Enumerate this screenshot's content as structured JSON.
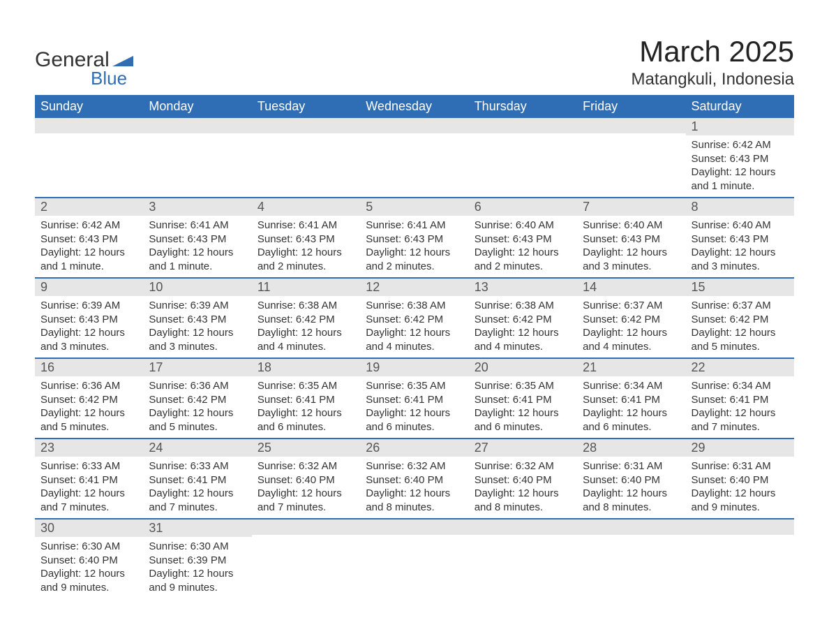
{
  "logo": {
    "line1": "General",
    "line2": "Blue"
  },
  "title": "March 2025",
  "location": "Matangkuli, Indonesia",
  "header_bg": "#2f6eb5",
  "header_fg": "#ffffff",
  "row_separator_color": "#2f6eb5",
  "daynum_bg": "#e6e6e6",
  "columns": [
    "Sunday",
    "Monday",
    "Tuesday",
    "Wednesday",
    "Thursday",
    "Friday",
    "Saturday"
  ],
  "weeks": [
    [
      null,
      null,
      null,
      null,
      null,
      null,
      {
        "n": "1",
        "sunrise": "Sunrise: 6:42 AM",
        "sunset": "Sunset: 6:43 PM",
        "daylight": "Daylight: 12 hours and 1 minute."
      }
    ],
    [
      {
        "n": "2",
        "sunrise": "Sunrise: 6:42 AM",
        "sunset": "Sunset: 6:43 PM",
        "daylight": "Daylight: 12 hours and 1 minute."
      },
      {
        "n": "3",
        "sunrise": "Sunrise: 6:41 AM",
        "sunset": "Sunset: 6:43 PM",
        "daylight": "Daylight: 12 hours and 1 minute."
      },
      {
        "n": "4",
        "sunrise": "Sunrise: 6:41 AM",
        "sunset": "Sunset: 6:43 PM",
        "daylight": "Daylight: 12 hours and 2 minutes."
      },
      {
        "n": "5",
        "sunrise": "Sunrise: 6:41 AM",
        "sunset": "Sunset: 6:43 PM",
        "daylight": "Daylight: 12 hours and 2 minutes."
      },
      {
        "n": "6",
        "sunrise": "Sunrise: 6:40 AM",
        "sunset": "Sunset: 6:43 PM",
        "daylight": "Daylight: 12 hours and 2 minutes."
      },
      {
        "n": "7",
        "sunrise": "Sunrise: 6:40 AM",
        "sunset": "Sunset: 6:43 PM",
        "daylight": "Daylight: 12 hours and 3 minutes."
      },
      {
        "n": "8",
        "sunrise": "Sunrise: 6:40 AM",
        "sunset": "Sunset: 6:43 PM",
        "daylight": "Daylight: 12 hours and 3 minutes."
      }
    ],
    [
      {
        "n": "9",
        "sunrise": "Sunrise: 6:39 AM",
        "sunset": "Sunset: 6:43 PM",
        "daylight": "Daylight: 12 hours and 3 minutes."
      },
      {
        "n": "10",
        "sunrise": "Sunrise: 6:39 AM",
        "sunset": "Sunset: 6:43 PM",
        "daylight": "Daylight: 12 hours and 3 minutes."
      },
      {
        "n": "11",
        "sunrise": "Sunrise: 6:38 AM",
        "sunset": "Sunset: 6:42 PM",
        "daylight": "Daylight: 12 hours and 4 minutes."
      },
      {
        "n": "12",
        "sunrise": "Sunrise: 6:38 AM",
        "sunset": "Sunset: 6:42 PM",
        "daylight": "Daylight: 12 hours and 4 minutes."
      },
      {
        "n": "13",
        "sunrise": "Sunrise: 6:38 AM",
        "sunset": "Sunset: 6:42 PM",
        "daylight": "Daylight: 12 hours and 4 minutes."
      },
      {
        "n": "14",
        "sunrise": "Sunrise: 6:37 AM",
        "sunset": "Sunset: 6:42 PM",
        "daylight": "Daylight: 12 hours and 4 minutes."
      },
      {
        "n": "15",
        "sunrise": "Sunrise: 6:37 AM",
        "sunset": "Sunset: 6:42 PM",
        "daylight": "Daylight: 12 hours and 5 minutes."
      }
    ],
    [
      {
        "n": "16",
        "sunrise": "Sunrise: 6:36 AM",
        "sunset": "Sunset: 6:42 PM",
        "daylight": "Daylight: 12 hours and 5 minutes."
      },
      {
        "n": "17",
        "sunrise": "Sunrise: 6:36 AM",
        "sunset": "Sunset: 6:42 PM",
        "daylight": "Daylight: 12 hours and 5 minutes."
      },
      {
        "n": "18",
        "sunrise": "Sunrise: 6:35 AM",
        "sunset": "Sunset: 6:41 PM",
        "daylight": "Daylight: 12 hours and 6 minutes."
      },
      {
        "n": "19",
        "sunrise": "Sunrise: 6:35 AM",
        "sunset": "Sunset: 6:41 PM",
        "daylight": "Daylight: 12 hours and 6 minutes."
      },
      {
        "n": "20",
        "sunrise": "Sunrise: 6:35 AM",
        "sunset": "Sunset: 6:41 PM",
        "daylight": "Daylight: 12 hours and 6 minutes."
      },
      {
        "n": "21",
        "sunrise": "Sunrise: 6:34 AM",
        "sunset": "Sunset: 6:41 PM",
        "daylight": "Daylight: 12 hours and 6 minutes."
      },
      {
        "n": "22",
        "sunrise": "Sunrise: 6:34 AM",
        "sunset": "Sunset: 6:41 PM",
        "daylight": "Daylight: 12 hours and 7 minutes."
      }
    ],
    [
      {
        "n": "23",
        "sunrise": "Sunrise: 6:33 AM",
        "sunset": "Sunset: 6:41 PM",
        "daylight": "Daylight: 12 hours and 7 minutes."
      },
      {
        "n": "24",
        "sunrise": "Sunrise: 6:33 AM",
        "sunset": "Sunset: 6:41 PM",
        "daylight": "Daylight: 12 hours and 7 minutes."
      },
      {
        "n": "25",
        "sunrise": "Sunrise: 6:32 AM",
        "sunset": "Sunset: 6:40 PM",
        "daylight": "Daylight: 12 hours and 7 minutes."
      },
      {
        "n": "26",
        "sunrise": "Sunrise: 6:32 AM",
        "sunset": "Sunset: 6:40 PM",
        "daylight": "Daylight: 12 hours and 8 minutes."
      },
      {
        "n": "27",
        "sunrise": "Sunrise: 6:32 AM",
        "sunset": "Sunset: 6:40 PM",
        "daylight": "Daylight: 12 hours and 8 minutes."
      },
      {
        "n": "28",
        "sunrise": "Sunrise: 6:31 AM",
        "sunset": "Sunset: 6:40 PM",
        "daylight": "Daylight: 12 hours and 8 minutes."
      },
      {
        "n": "29",
        "sunrise": "Sunrise: 6:31 AM",
        "sunset": "Sunset: 6:40 PM",
        "daylight": "Daylight: 12 hours and 9 minutes."
      }
    ],
    [
      {
        "n": "30",
        "sunrise": "Sunrise: 6:30 AM",
        "sunset": "Sunset: 6:40 PM",
        "daylight": "Daylight: 12 hours and 9 minutes."
      },
      {
        "n": "31",
        "sunrise": "Sunrise: 6:30 AM",
        "sunset": "Sunset: 6:39 PM",
        "daylight": "Daylight: 12 hours and 9 minutes."
      },
      null,
      null,
      null,
      null,
      null
    ]
  ]
}
